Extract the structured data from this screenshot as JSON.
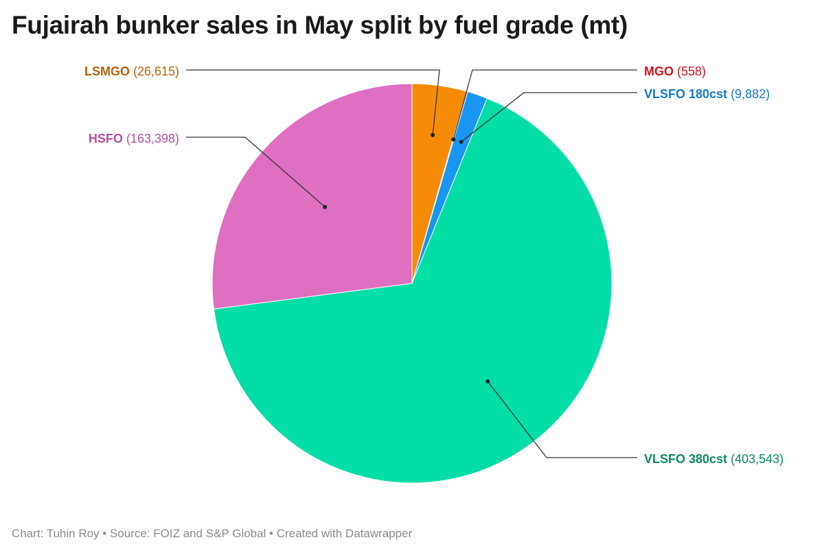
{
  "chart_data": {
    "type": "pie",
    "title": "Fujairah bunker sales in May split by fuel grade (mt)",
    "unit": "mt",
    "slices": [
      {
        "name": "LSMGO",
        "value": 26615,
        "label_value": "(26,615)",
        "color": "#f68b07",
        "label_color": "#b8610b"
      },
      {
        "name": "MGO",
        "value": 558,
        "label_value": "(558)",
        "color": "#e3202b",
        "label_color": "#d5121c"
      },
      {
        "name": "VLSFO 180cst",
        "value": 9882,
        "label_value": "(9,882)",
        "color": "#1896f2",
        "label_color": "#1677c8"
      },
      {
        "name": "VLSFO 380cst",
        "value": 403543,
        "label_value": "(403,543)",
        "color": "#03dda6",
        "label_color": "#0b8a5e"
      },
      {
        "name": "HSFO",
        "value": 163398,
        "label_value": "(163,398)",
        "color": "#df6fc1",
        "label_color": "#b34f9e"
      }
    ]
  },
  "footer": {
    "credit": "Chart: Tuhin Roy • Source: FOIZ and S&P Global • Created with Datawrapper"
  }
}
